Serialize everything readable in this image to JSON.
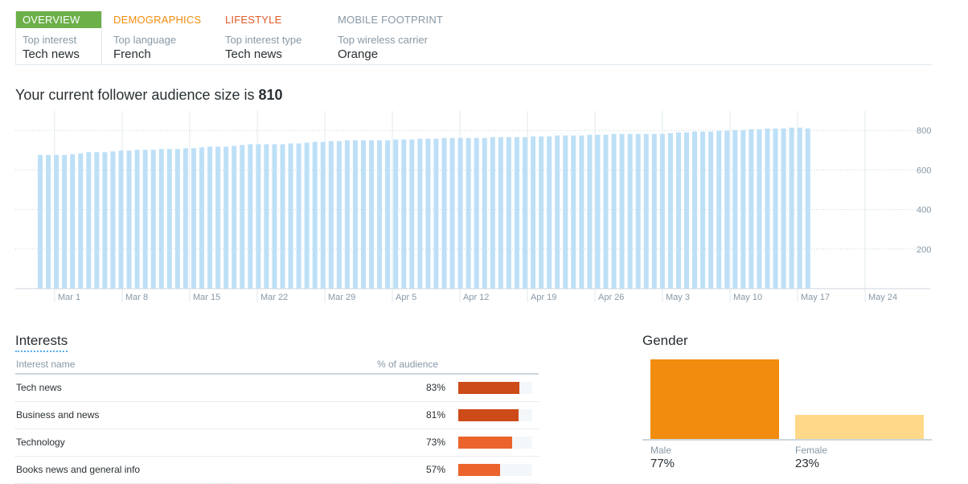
{
  "tabs": [
    {
      "name": "OVERVIEW",
      "label": "Top interest",
      "value": "Tech news",
      "color": "#ffffff",
      "active": true
    },
    {
      "name": "DEMOGRAPHICS",
      "label": "Top language",
      "value": "French",
      "color": "#f28c0f"
    },
    {
      "name": "LIFESTYLE",
      "label": "Top interest type",
      "value": "Tech news",
      "color": "#e05a28"
    },
    {
      "name": "MOBILE FOOTPRINT",
      "label": "Top wireless carrier",
      "value": "Orange",
      "color": "#8899a6"
    }
  ],
  "audience": {
    "title_prefix": "Your current follower audience size is ",
    "size": "810"
  },
  "chart_data": {
    "type": "bar",
    "ylim": [
      0,
      850
    ],
    "yticks": [
      200,
      400,
      600,
      800
    ],
    "xticks": [
      "Mar 1",
      "Mar 8",
      "Mar 15",
      "Mar 22",
      "Mar 29",
      "Apr 5",
      "Apr 12",
      "Apr 19",
      "Apr 26",
      "May 3",
      "May 10",
      "May 17",
      "May 24"
    ],
    "bar_color": "#bde0f7",
    "values": [
      676,
      676,
      676,
      676,
      680,
      684,
      690,
      690,
      690,
      694,
      698,
      698,
      702,
      702,
      702,
      706,
      706,
      706,
      710,
      710,
      714,
      718,
      718,
      718,
      722,
      726,
      730,
      730,
      730,
      730,
      730,
      734,
      734,
      738,
      742,
      742,
      746,
      746,
      750,
      750,
      750,
      750,
      750,
      750,
      754,
      754,
      754,
      758,
      758,
      758,
      762,
      762,
      762,
      762,
      762,
      762,
      766,
      766,
      766,
      766,
      766,
      770,
      770,
      770,
      774,
      774,
      774,
      774,
      778,
      778,
      778,
      782,
      782,
      782,
      782,
      782,
      782,
      782,
      786,
      790,
      790,
      794,
      794,
      794,
      798,
      798,
      802,
      802,
      806,
      806,
      810,
      810,
      810,
      814,
      814,
      810
    ]
  },
  "interests": {
    "title": "Interests",
    "col_name": "Interest name",
    "col_pct": "% of audience",
    "rows": [
      {
        "name": "Tech news",
        "pct": "83%",
        "value": 83,
        "color": "#cc4b18"
      },
      {
        "name": "Business and news",
        "pct": "81%",
        "value": 81,
        "color": "#cc4b18"
      },
      {
        "name": "Technology",
        "pct": "73%",
        "value": 73,
        "color": "#ea642b"
      },
      {
        "name": "Books news and general info",
        "pct": "57%",
        "value": 57,
        "color": "#ea642b"
      }
    ]
  },
  "gender": {
    "title": "Gender",
    "male": {
      "label": "Male",
      "pct": "77%",
      "value": 77,
      "color": "#f28c0f"
    },
    "female": {
      "label": "Female",
      "pct": "23%",
      "value": 23,
      "color": "#ffd989"
    }
  }
}
